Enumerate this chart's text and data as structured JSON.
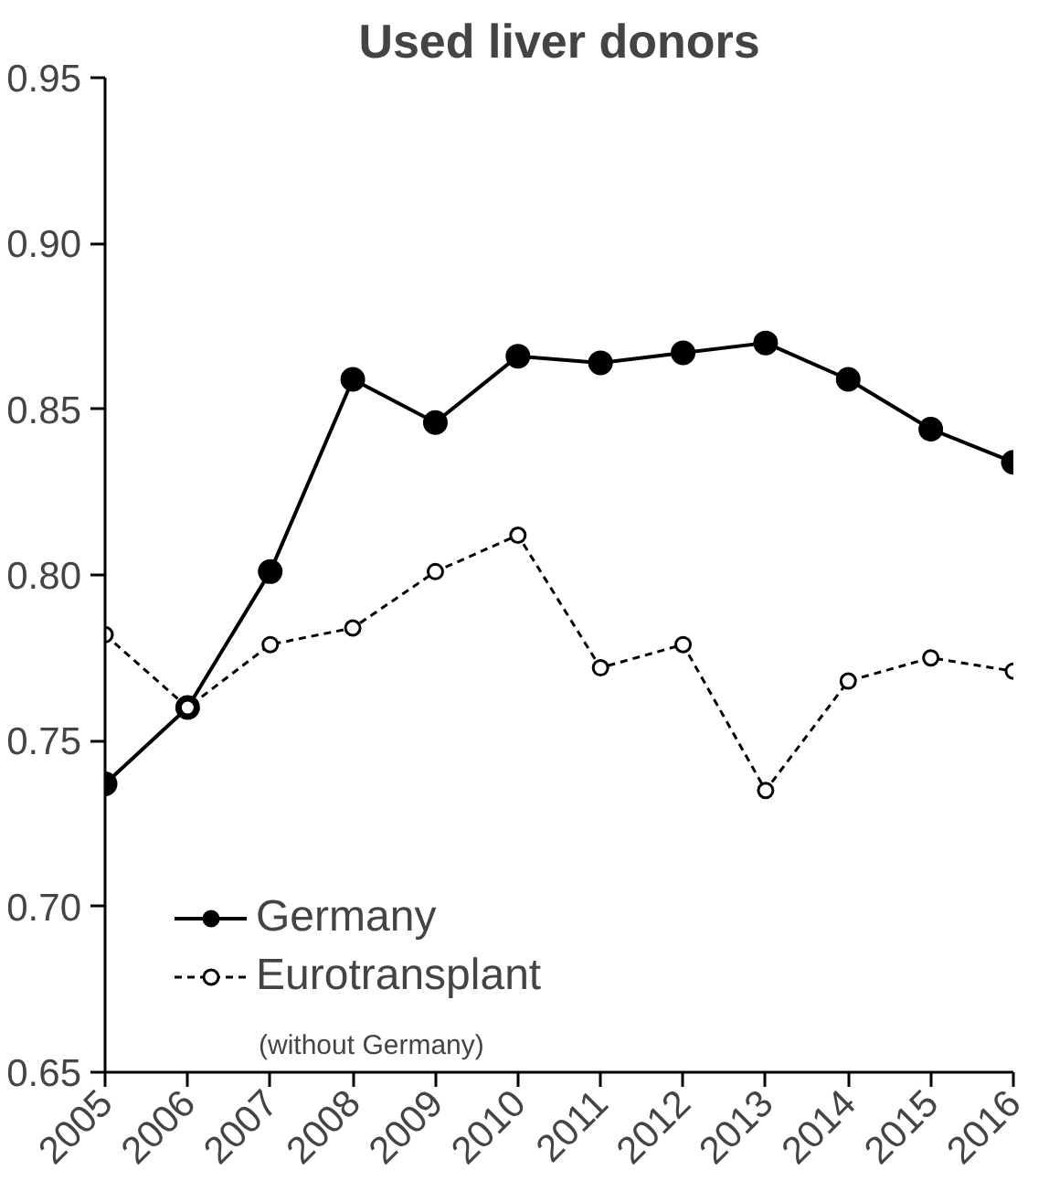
{
  "chart_data": {
    "type": "line",
    "title": "Used liver donors",
    "x": [
      2005,
      2006,
      2007,
      2008,
      2009,
      2010,
      2011,
      2012,
      2013,
      2014,
      2015,
      2016
    ],
    "series": [
      {
        "name": "Germany",
        "color": "#000000",
        "line_style": "solid",
        "values": [
          0.737,
          0.76,
          0.801,
          0.859,
          0.846,
          0.866,
          0.864,
          0.867,
          0.87,
          0.859,
          0.844,
          0.834
        ]
      },
      {
        "name": "Eurotransplant",
        "color": "#000000",
        "line_style": "dashed",
        "values": [
          0.782,
          0.76,
          0.779,
          0.784,
          0.801,
          0.812,
          0.772,
          0.779,
          0.735,
          0.768,
          0.775,
          0.771
        ]
      }
    ],
    "annotations": [
      "(without Germany)"
    ],
    "xlim": [
      2005,
      2016
    ],
    "xticks": [
      2005,
      2006,
      2007,
      2008,
      2009,
      2010,
      2011,
      2012,
      2013,
      2014,
      2015,
      2016
    ],
    "ylim": [
      0.65,
      0.95
    ],
    "yticks": [
      {
        "value": 0.65,
        "label": "0.65"
      },
      {
        "value": 0.7,
        "label": "0.70"
      },
      {
        "value": 0.75,
        "label": "0.75"
      },
      {
        "value": 0.8,
        "label": "0.80"
      },
      {
        "value": 0.85,
        "label": "0.85"
      },
      {
        "value": 0.9,
        "label": "0.90"
      },
      {
        "value": 0.95,
        "label": "0.95"
      }
    ],
    "grid": false,
    "legend": "bottom left",
    "marker": "circle"
  }
}
